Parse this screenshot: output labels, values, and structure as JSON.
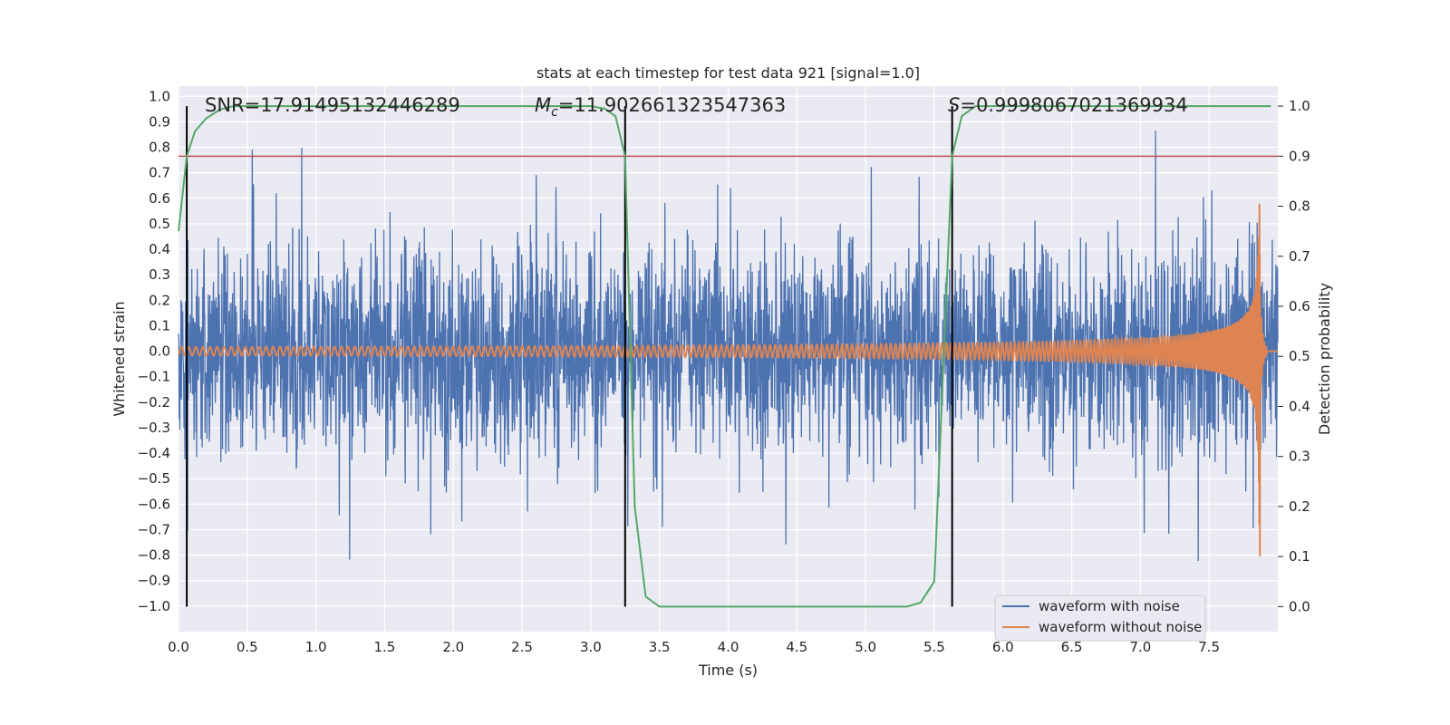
{
  "chart_data": {
    "type": "line",
    "title": "stats at each timestep for test data 921 [signal=1.0]",
    "xlabel": "Time (s)",
    "ylabel": "Whitened strain",
    "y2label": "Detection probability",
    "xlim": [
      0.0,
      8.0
    ],
    "ylim": [
      -1.1,
      1.04
    ],
    "y2lim": [
      -0.05,
      1.04
    ],
    "xticks": [
      "0.0",
      "0.5",
      "1.0",
      "1.5",
      "2.0",
      "2.5",
      "3.0",
      "3.5",
      "4.0",
      "4.5",
      "5.0",
      "5.5",
      "6.0",
      "6.5",
      "7.0",
      "7.5"
    ],
    "yticks": [
      "1.0",
      "0.9",
      "0.8",
      "0.7",
      "0.6",
      "0.5",
      "0.4",
      "0.3",
      "0.2",
      "0.1",
      "0.0",
      "−0.1",
      "−0.2",
      "−0.3",
      "−0.4",
      "−0.5",
      "−0.6",
      "−0.7",
      "−0.8",
      "−0.9",
      "−1.0"
    ],
    "y2ticks": [
      "1.0",
      "0.9",
      "0.8",
      "0.7",
      "0.6",
      "0.5",
      "0.4",
      "0.3",
      "0.2",
      "0.1",
      "0.0"
    ],
    "grid": true,
    "legend_position": "bottom-right",
    "annotations": {
      "snr": "SNR=17.91495132446289",
      "mc_symbol": "M",
      "mc_sub": "c",
      "mc_value": "=11.902661323547363",
      "s_symbol": "S",
      "s_value": "=0.9998067021369934"
    },
    "vlines_x": [
      0.06,
      3.25,
      5.63
    ],
    "threshold_y2": 0.9,
    "series": [
      {
        "name": "waveform with noise",
        "color": "#4c72b0",
        "noise_std": 0.2,
        "extreme_max": 0.95,
        "extreme_min": -1.0
      },
      {
        "name": "waveform without noise",
        "color": "#dd8452",
        "merger_time": 7.87,
        "start_amplitude": 0.02,
        "peak_amplitude": 0.85
      },
      {
        "name": "detection probability",
        "color": "#55a868",
        "x": [
          0.0,
          0.06,
          0.12,
          0.2,
          0.3,
          0.4,
          3.0,
          3.1,
          3.18,
          3.25,
          3.32,
          3.4,
          3.5,
          5.3,
          5.4,
          5.5,
          5.63,
          5.7,
          5.8,
          7.95
        ],
        "y": [
          0.75,
          0.9,
          0.95,
          0.975,
          0.993,
          1.0,
          1.0,
          0.995,
          0.98,
          0.9,
          0.2,
          0.02,
          0.0,
          0.0,
          0.008,
          0.05,
          0.9,
          0.98,
          1.0,
          1.0
        ]
      }
    ]
  },
  "colors": {
    "background": "#eaeaf2",
    "grid": "#ffffff",
    "noise": "#4c72b0",
    "clean": "#dd8452",
    "prob": "#55a868",
    "threshold": "#c44e52",
    "vline": "#000000"
  }
}
